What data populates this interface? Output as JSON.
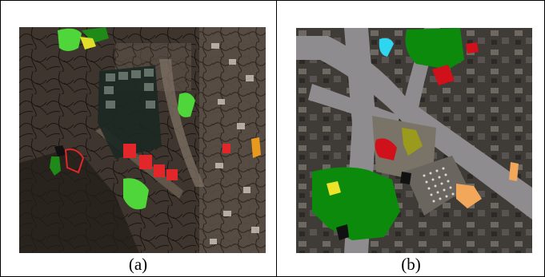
{
  "panels": [
    {
      "caption": "(a)",
      "image": {
        "kind": "aerial-segmentation",
        "colors": {
          "background": "#3e352e",
          "segment_border": "#1a1512",
          "green_light": "#4fd63a",
          "green_dark": "#1f8a17",
          "yellow": "#e0de2a",
          "red": "#e2262a",
          "orange": "#e99a1c"
        }
      }
    },
    {
      "caption": "(b)",
      "image": {
        "kind": "aerial-segmentation",
        "colors": {
          "background": "#3f3b37",
          "road": "#8e8c8f",
          "green": "#0c8a0c",
          "cyan": "#2ed7ef",
          "red": "#d0111b",
          "olive": "#9a9a1c",
          "yellow": "#ece32a",
          "orange": "#f2a75a",
          "tan": "#c9a26a"
        }
      }
    }
  ]
}
